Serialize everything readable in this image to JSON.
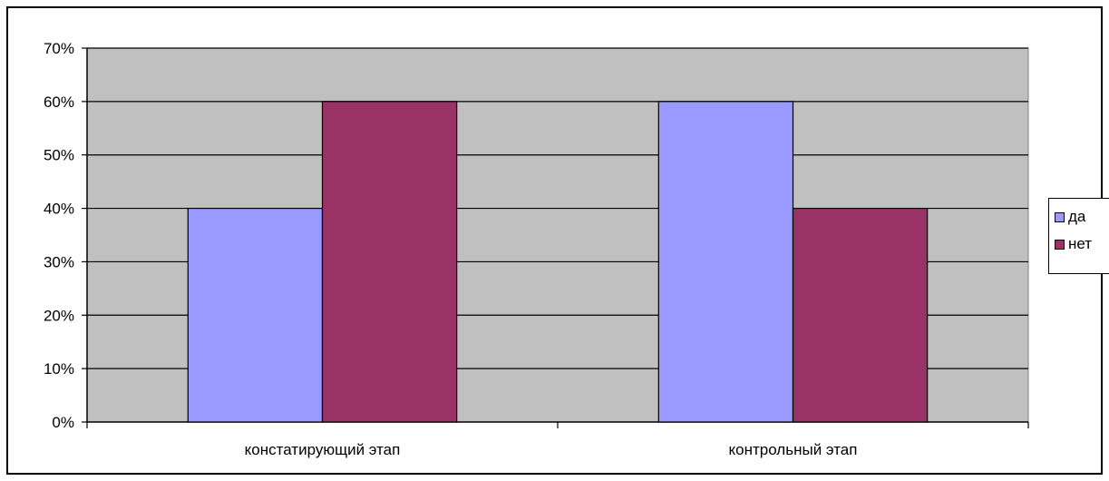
{
  "chart_data": {
    "type": "bar",
    "categories": [
      "констатирующий этап",
      "контрольный этап"
    ],
    "series": [
      {
        "name": "да",
        "values": [
          40,
          60
        ],
        "color": "#9999ff"
      },
      {
        "name": "нет",
        "values": [
          60,
          40
        ],
        "color": "#993366"
      }
    ],
    "ylim": [
      0,
      70
    ],
    "yticks": [
      "0%",
      "10%",
      "20%",
      "30%",
      "40%",
      "50%",
      "60%",
      "70%"
    ],
    "grid": true,
    "plot_background": "#c0c0c0",
    "legend_position": "right"
  }
}
